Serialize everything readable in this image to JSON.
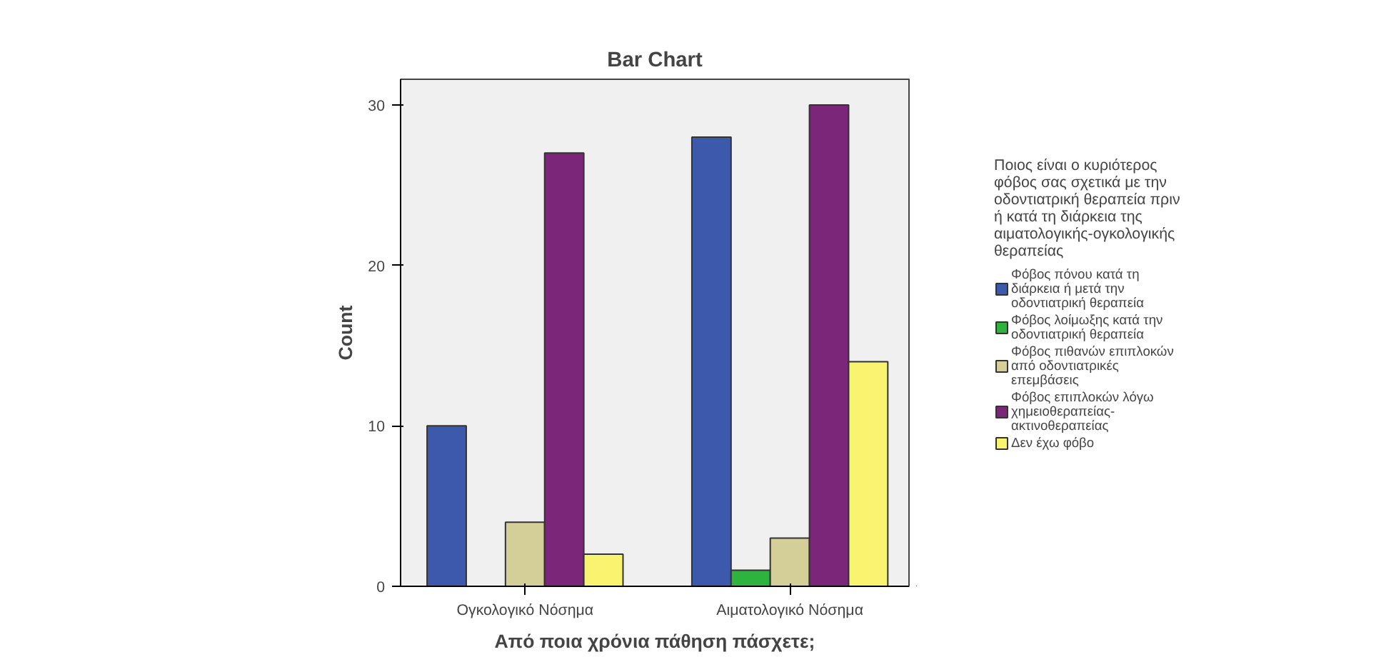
{
  "chart_data": {
    "type": "bar",
    "title": "Bar Chart",
    "xlabel": "Από ποια χρόνια πάθηση πάσχετε;",
    "ylabel": "Count",
    "legend_title": "Ποιος είναι ο κυριότερος φόβος σας σχετικά με την οδοντιατρική θεραπεία πριν ή κατά τη διάρκεια της αιματολογικής-ογκολογικής θεραπείας",
    "categories": [
      "Ογκολογικό Νόσημα",
      "Αιματολογικό Νόσημα"
    ],
    "series": [
      {
        "name": "Φόβος πόνου κατά τη διάρκεια ή μετά την οδοντιατρική θεραπεία",
        "color": "#3d59ab",
        "values": [
          10,
          28
        ]
      },
      {
        "name": "Φόβος λοίμωξης κατά την οδοντιατρική θεραπεία",
        "color": "#2eb33e",
        "values": [
          null,
          1
        ]
      },
      {
        "name": "Φόβος πιθανών επιπλοκών από οδοντιατρικές επεμβάσεις",
        "color": "#d4cf98",
        "values": [
          4,
          3
        ]
      },
      {
        "name": "Φόβος επιπλοκών λόγω χημειοθεραπείας-ακτινοθεραπείας",
        "color": "#7b2678",
        "values": [
          27,
          30
        ]
      },
      {
        "name": "Δεν έχω φόβο",
        "color": "#f8f46f",
        "values": [
          2,
          14
        ]
      }
    ],
    "ylim": [
      0,
      31.6
    ],
    "yticks": [
      0,
      10,
      20,
      30
    ],
    "grid": false,
    "legend": "right"
  }
}
